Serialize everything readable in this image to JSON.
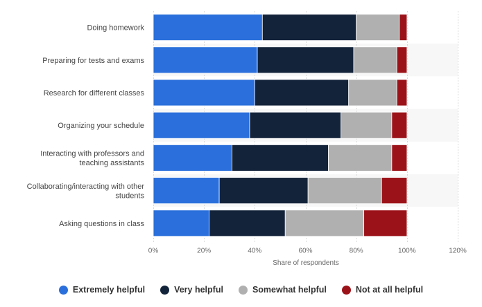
{
  "chart_data": {
    "type": "bar",
    "orientation": "horizontal",
    "stacked": true,
    "categories": [
      "Doing homework",
      "Preparing for tests and exams",
      "Research for different classes",
      "Organizing your schedule",
      "Interacting with professors and teaching assistants",
      "Collaborating/interacting with other students",
      "Asking questions in class"
    ],
    "category_label_lines": [
      [
        "Doing homework"
      ],
      [
        "Preparing for tests and exams"
      ],
      [
        "Research for different classes"
      ],
      [
        "Organizing your schedule"
      ],
      [
        "Interacting with professors and",
        "teaching assistants"
      ],
      [
        "Collaborating/interacting with other",
        "students"
      ],
      [
        "Asking questions in class"
      ]
    ],
    "series": [
      {
        "name": "Extremely helpful",
        "color": "#2a6fdb",
        "values": [
          43,
          41,
          40,
          38,
          31,
          26,
          22
        ]
      },
      {
        "name": "Very helpful",
        "color": "#13233a",
        "values": [
          37,
          38,
          37,
          36,
          38,
          35,
          30
        ]
      },
      {
        "name": "Somewhat helpful",
        "color": "#b0b0b0",
        "values": [
          17,
          17,
          19,
          20,
          25,
          29,
          31
        ]
      },
      {
        "name": "Not at all helpful",
        "color": "#9b1218",
        "values": [
          3,
          4,
          4,
          6,
          6,
          10,
          17
        ]
      }
    ],
    "xlabel": "Share of respondents",
    "ylabel": "",
    "xlim": [
      0,
      120
    ],
    "ticks": [
      0,
      20,
      40,
      60,
      80,
      100,
      120
    ],
    "tick_labels": [
      "0%",
      "20%",
      "40%",
      "60%",
      "80%",
      "100%",
      "120%"
    ],
    "grid": true,
    "legend_position": "bottom"
  }
}
